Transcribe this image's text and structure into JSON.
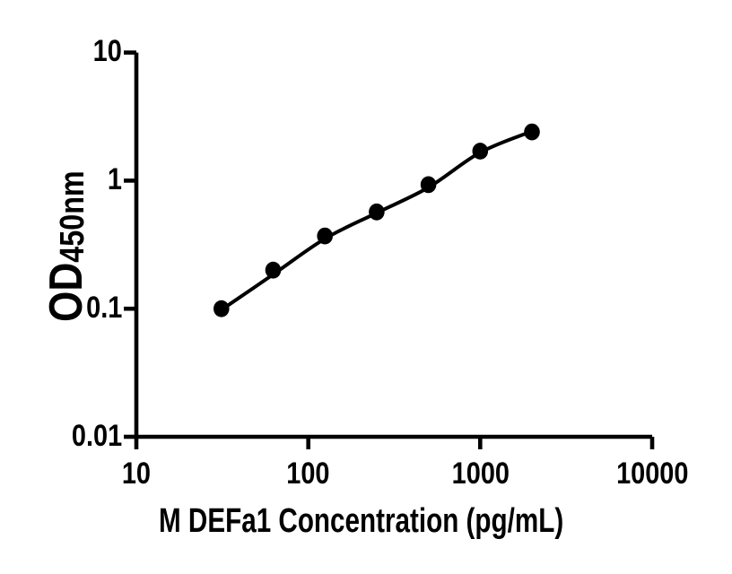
{
  "figure": {
    "background_color": "#ffffff",
    "ink_color": "#000000"
  },
  "chart_data": {
    "type": "scatter",
    "subtype": "elisa-standard-curve-with-fit-line",
    "title": "",
    "xlabel": "M DEFa1 Concentration (pg/mL)",
    "ylabel_main": "OD",
    "ylabel_sub": "450nm",
    "x_scale": "log10",
    "y_scale": "log10",
    "xlim": [
      10,
      10000
    ],
    "ylim": [
      0.01,
      10
    ],
    "grid": false,
    "legend": null,
    "line_color": "#000000",
    "marker": {
      "shape": "circle",
      "color": "#000000"
    },
    "x_ticks": [
      {
        "value": 10,
        "label": "10"
      },
      {
        "value": 100,
        "label": "100"
      },
      {
        "value": 1000,
        "label": "1000"
      },
      {
        "value": 10000,
        "label": "10000"
      }
    ],
    "y_ticks": [
      {
        "value": 10,
        "label": "10"
      },
      {
        "value": 1,
        "label": "1"
      },
      {
        "value": 0.1,
        "label": "0.1"
      },
      {
        "value": 0.01,
        "label": "0.01"
      }
    ],
    "points": [
      {
        "x": 31.25,
        "od": 0.1
      },
      {
        "x": 62.5,
        "od": 0.2
      },
      {
        "x": 125,
        "od": 0.37
      },
      {
        "x": 250,
        "od": 0.57
      },
      {
        "x": 500,
        "od": 0.93
      },
      {
        "x": 1000,
        "od": 1.7
      },
      {
        "x": 2000,
        "od": 2.4
      }
    ],
    "fit_curve": [
      {
        "x": 31.25,
        "od": 0.098
      },
      {
        "x": 62.5,
        "od": 0.185
      },
      {
        "x": 125,
        "od": 0.352
      },
      {
        "x": 250,
        "od": 0.56
      },
      {
        "x": 500,
        "od": 0.885
      },
      {
        "x": 1000,
        "od": 1.66
      },
      {
        "x": 2000,
        "od": 2.43
      }
    ]
  }
}
